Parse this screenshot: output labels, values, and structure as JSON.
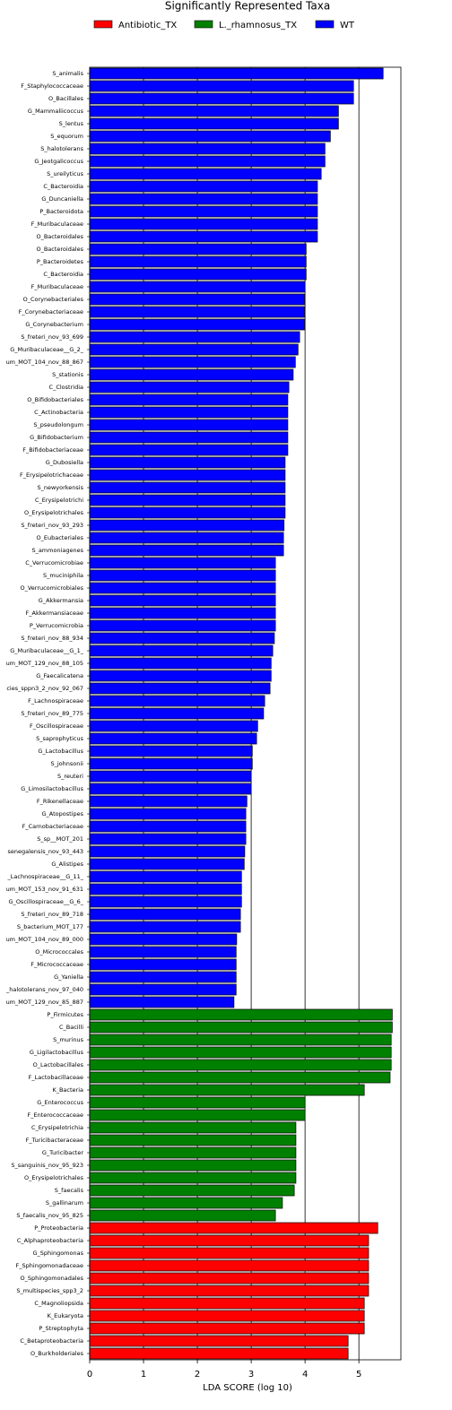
{
  "chart_data": {
    "type": "barh",
    "title": "Significantly Represented Taxa",
    "xlabel": "LDA SCORE (log 10)",
    "categories": [
      "S_animalis",
      "F_Staphylococcaceae",
      "O_Bacillales",
      "G_Mammaliicoccus",
      "S_lentus",
      "S_equorum",
      "S_halotolerans",
      "G_Jeotgalicoccus",
      "S_ureilyticus",
      "C_Bacteroidia",
      "G_Duncaniella",
      "P_Bacteroidota",
      "F_Muribaculaceae",
      "O_Bacteroidales",
      "O_Bacteroidales",
      "P_Bacteroidetes",
      "C_Bacteroidia",
      "F_Muribaculaceae",
      "O_Corynebacteriales",
      "F_Corynebacteriaceae",
      "G_Corynebacterium",
      "S_freteri_nov_93_699",
      "G_Muribaculaceae__G_2_",
      "um_MOT_104_nov_88_867",
      "S_stationis",
      "C_Clostridia",
      "O_Bifidobacteriales",
      "C_Actinobacteria",
      "S_pseudolongum",
      "G_Bifidobacterium",
      "F_Bifidobacteriaceae",
      "G_Dubosiella",
      "F_Erysipelotrichaceae",
      "S_newyorkensis",
      "C_Erysipelotrichi",
      "O_Erysipelotrichales",
      "S_freteri_nov_93_293",
      "O_Eubacteriales",
      "S_ammoniagenes",
      "C_Verrucomicrobiae",
      "S_muciniphila",
      "O_Verrucomicrobiales",
      "G_Akkermansia",
      "F_Akkermansiaceae",
      "P_Verrucomicrobia",
      "S_freteri_nov_88_934",
      "G_Muribaculaceae__G_1_",
      "um_MOT_129_nov_88_105",
      "G_Faecalicatena",
      "cies_sppn3_2_nov_92_067",
      "F_Lachnospiraceae",
      "S_freteri_nov_89_775",
      "F_Oscillospiraceae",
      "S_saprophyticus",
      "G_Lactobacillus",
      "S_johnsonii",
      "S_reuteri",
      "G_Limosilactobacillus",
      "F_Rikenellaceae",
      "G_Atopostipes",
      "F_Carnobacteriaceae",
      "S_sp__MOT_201",
      "senegalensis_nov_93_443",
      "G_Alistipes",
      "_Lachnospiraceae__G_11_",
      "um_MOT_153_nov_91_631",
      "G_Oscillospiraceae__G_6_",
      "S_freteri_nov_89_718",
      "S_bacterium_MOT_177",
      "um_MOT_104_nov_89_000",
      "O_Micrococcales",
      "F_Micrococcaceae",
      "G_Yaniella",
      "_halotolerans_nov_97_040",
      "um_MOT_129_nov_85_887",
      "P_Firmicutes",
      "C_Bacilli",
      "S_murinus",
      "G_Ligilactobacillus",
      "O_Lactobacillales",
      "F_Lactobacillaceae",
      "K_Bacteria",
      "G_Enterococcus",
      "F_Enterococcaceae",
      "C_Erysipelotrichia",
      "F_Turicibacteraceae",
      "G_Turicibacter",
      "S_sanguinis_nov_95_923",
      "O_Erysipelotrichales",
      "S_faecalis",
      "S_gallinarum",
      "S_faecalis_nov_95_825",
      "P_Proteobacteria",
      "C_Alphaproteobacteria",
      "G_Sphingomonas",
      "F_Sphingomonadaceae",
      "O_Sphingomonadales",
      "S_multispecies_spp3_2",
      "C_Magnoliopsida",
      "K_Eukaryota",
      "P_Streptophyta",
      "C_Betaproteobacteria",
      "O_Burkholderiales"
    ],
    "series": [
      {
        "name": "Antibiotic_TX",
        "color": "#ff0000",
        "values": [
          null,
          null,
          null,
          null,
          null,
          null,
          null,
          null,
          null,
          null,
          null,
          null,
          null,
          null,
          null,
          null,
          null,
          null,
          null,
          null,
          null,
          null,
          null,
          null,
          null,
          null,
          null,
          null,
          null,
          null,
          null,
          null,
          null,
          null,
          null,
          null,
          null,
          null,
          null,
          null,
          null,
          null,
          null,
          null,
          null,
          null,
          null,
          null,
          null,
          null,
          null,
          null,
          null,
          null,
          null,
          null,
          null,
          null,
          null,
          null,
          null,
          null,
          null,
          null,
          null,
          null,
          null,
          null,
          null,
          null,
          null,
          null,
          null,
          null,
          null,
          null,
          null,
          null,
          null,
          null,
          null,
          null,
          null,
          null,
          null,
          null,
          null,
          null,
          null,
          null,
          null,
          null,
          5.35,
          5.18,
          5.18,
          5.18,
          5.18,
          5.18,
          5.1,
          5.1,
          5.1,
          4.8,
          4.8
        ]
      },
      {
        "name": "L._rhamnosus_TX",
        "color": "#008000",
        "values": [
          null,
          null,
          null,
          null,
          null,
          null,
          null,
          null,
          null,
          null,
          null,
          null,
          null,
          null,
          null,
          null,
          null,
          null,
          null,
          null,
          null,
          null,
          null,
          null,
          null,
          null,
          null,
          null,
          null,
          null,
          null,
          null,
          null,
          null,
          null,
          null,
          null,
          null,
          null,
          null,
          null,
          null,
          null,
          null,
          null,
          null,
          null,
          null,
          null,
          null,
          null,
          null,
          null,
          null,
          null,
          null,
          null,
          null,
          null,
          null,
          null,
          null,
          null,
          null,
          null,
          null,
          null,
          null,
          null,
          null,
          null,
          null,
          null,
          null,
          null,
          5.62,
          5.62,
          5.6,
          5.6,
          5.6,
          5.58,
          5.1,
          4.0,
          4.0,
          3.83,
          3.83,
          3.83,
          3.83,
          3.83,
          3.8,
          3.58,
          3.45,
          null,
          null,
          null,
          null,
          null,
          null,
          null,
          null,
          null,
          null,
          null
        ]
      },
      {
        "name": "WT",
        "color": "#0000ff",
        "values": [
          5.45,
          4.9,
          4.9,
          4.62,
          4.62,
          4.47,
          4.37,
          4.37,
          4.3,
          4.23,
          4.23,
          4.23,
          4.23,
          4.23,
          4.02,
          4.02,
          4.02,
          4.0,
          3.99,
          3.99,
          3.99,
          3.9,
          3.87,
          3.82,
          3.78,
          3.7,
          3.68,
          3.68,
          3.68,
          3.68,
          3.68,
          3.63,
          3.63,
          3.63,
          3.63,
          3.63,
          3.61,
          3.6,
          3.6,
          3.45,
          3.45,
          3.45,
          3.45,
          3.45,
          3.45,
          3.43,
          3.4,
          3.37,
          3.37,
          3.35,
          3.25,
          3.23,
          3.12,
          3.1,
          3.02,
          3.02,
          3.0,
          3.0,
          2.92,
          2.9,
          2.9,
          2.9,
          2.88,
          2.87,
          2.82,
          2.82,
          2.82,
          2.8,
          2.8,
          2.73,
          2.72,
          2.72,
          2.72,
          2.72,
          2.68,
          null,
          null,
          null,
          null,
          null,
          null,
          null,
          null,
          null,
          null,
          null,
          null,
          null,
          null,
          null,
          null,
          null,
          null,
          null,
          null,
          null,
          null,
          null,
          null,
          null,
          null,
          null,
          null
        ]
      }
    ],
    "xlim": [
      0,
      5.78
    ],
    "xticks": [
      0,
      1,
      2,
      3,
      4,
      5
    ],
    "grid": true
  }
}
